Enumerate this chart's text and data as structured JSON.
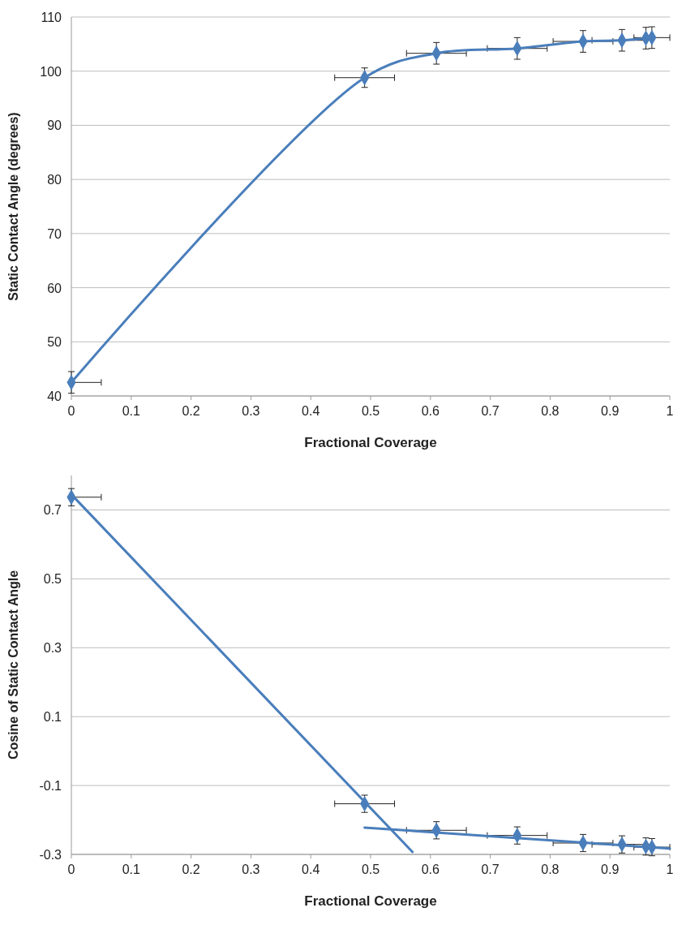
{
  "chart_data": [
    {
      "type": "line",
      "xlabel": "Fractional Coverage",
      "ylabel": "Static Contact Angle (degrees)",
      "xlim": [
        0,
        1
      ],
      "ylim": [
        40,
        110
      ],
      "xticks": [
        0,
        0.1,
        0.2,
        0.3,
        0.4,
        0.5,
        0.6,
        0.7,
        0.8,
        0.9,
        1
      ],
      "yticks": [
        40,
        50,
        60,
        70,
        80,
        90,
        100,
        110
      ],
      "grid": "y",
      "marker": "diamond",
      "series": [
        {
          "color": "#4a7ebb",
          "x": [
            0,
            0.49,
            0.61,
            0.745,
            0.855,
            0.92,
            0.96,
            0.97
          ],
          "values": [
            42.5,
            98.8,
            103.3,
            104.2,
            105.5,
            105.7,
            106.1,
            106.2
          ],
          "errors": [
            2,
            1.8,
            2,
            2,
            2,
            2,
            2,
            2
          ],
          "xerrors": [
            [
              0,
              0.05
            ],
            0.05,
            0.05,
            0.05,
            0.05,
            0.05,
            null,
            [
              0.94,
              1
            ]
          ]
        }
      ]
    },
    {
      "type": "scatter",
      "xlabel": "Fractional Coverage",
      "ylabel": "Cosine of Static Contact Angle",
      "xlim": [
        0,
        1
      ],
      "ylim": [
        -0.3,
        0.8
      ],
      "xticks": [
        0,
        0.1,
        0.2,
        0.3,
        0.4,
        0.5,
        0.6,
        0.7,
        0.8,
        0.9,
        1
      ],
      "yticks": [
        -0.3,
        -0.1,
        0.1,
        0.3,
        0.5,
        0.7
      ],
      "grid": "y",
      "marker": "diamond",
      "series": [
        {
          "color": "#4a7ebb",
          "x": [
            0,
            0.49,
            0.61,
            0.745,
            0.855,
            0.92,
            0.96,
            0.97
          ],
          "values": [
            0.737,
            -0.153,
            -0.23,
            -0.245,
            -0.267,
            -0.271,
            -0.277,
            -0.279
          ],
          "errors": [
            0.025,
            0.025,
            0.025,
            0.025,
            0.025,
            0.025,
            0.025,
            0.025
          ],
          "xerrors": [
            [
              0,
              0.05
            ],
            0.05,
            0.05,
            0.05,
            0.05,
            0.05,
            null,
            [
              0.94,
              1
            ]
          ]
        },
        {
          "type": "line",
          "marker": "none",
          "color": "#4a7ebb",
          "x": [
            0,
            0.57
          ],
          "values": [
            0.745,
            -0.293
          ]
        },
        {
          "type": "line",
          "marker": "none",
          "color": "#4a7ebb",
          "x": [
            0.49,
            1
          ],
          "values": [
            -0.222,
            -0.283
          ]
        }
      ]
    }
  ]
}
